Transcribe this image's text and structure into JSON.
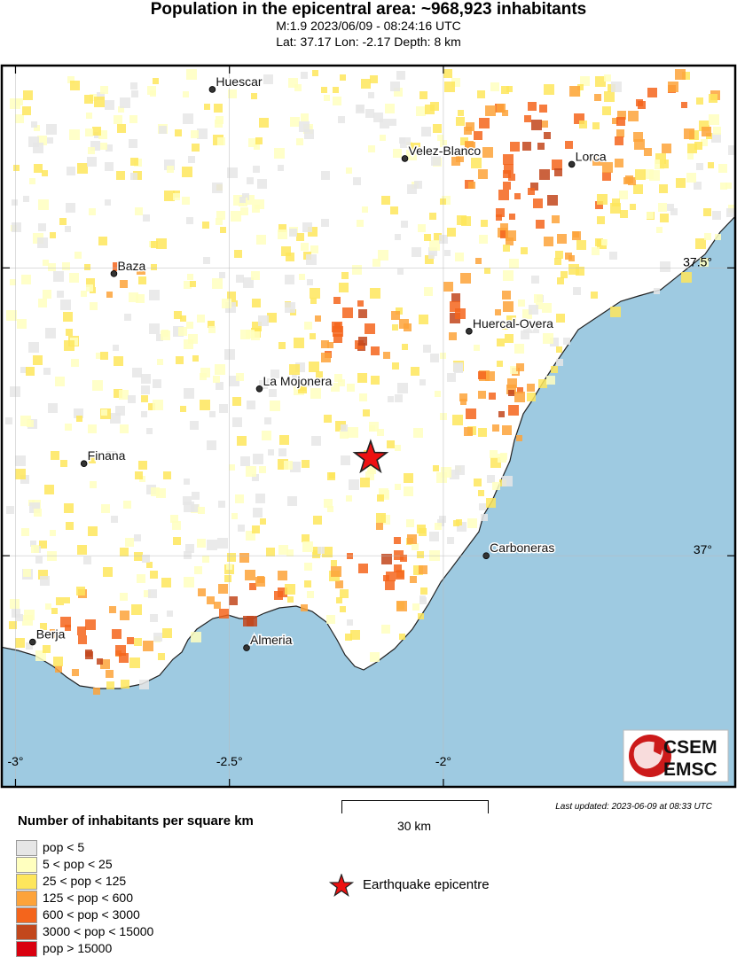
{
  "header": {
    "title": "Population in the epicentral area: ~968,923 inhabitants",
    "line1": "M:1.9 2023/06/09 - 08:24:16 UTC",
    "line2": "Lat: 37.17 Lon: -2.17 Depth: 8 km"
  },
  "map": {
    "bounds": {
      "lon_min": -3.03,
      "lon_max": -1.32,
      "lat_min": 36.6,
      "lat_max": 37.85
    },
    "colors": {
      "sea": "#9ecae1",
      "land": "#ffffff",
      "coast": "#222222",
      "epicentre": "#ee1111"
    },
    "cities": [
      {
        "name": "Huescar",
        "lon": -2.54,
        "lat": 37.81
      },
      {
        "name": "Velez-Blanco",
        "lon": -2.09,
        "lat": 37.69
      },
      {
        "name": "Lorca",
        "lon": -1.7,
        "lat": 37.68
      },
      {
        "name": "Baza",
        "lon": -2.77,
        "lat": 37.49
      },
      {
        "name": "Huercal-Overa",
        "lon": -1.94,
        "lat": 37.39
      },
      {
        "name": "La Mojonera",
        "lon": -2.43,
        "lat": 37.29
      },
      {
        "name": "Finana",
        "lon": -2.84,
        "lat": 37.16
      },
      {
        "name": "Carboneras",
        "lon": -1.9,
        "lat": 37.0
      },
      {
        "name": "Berja",
        "lon": -2.96,
        "lat": 36.85
      },
      {
        "name": "Almeria",
        "lon": -2.46,
        "lat": 36.84
      }
    ],
    "epicentre": {
      "lon": -2.17,
      "lat": 37.17
    },
    "lon_ticks": [
      {
        "label": "-3°",
        "value": -3.0
      },
      {
        "label": "-2.5°",
        "value": -2.5
      },
      {
        "label": "-2°",
        "value": -2.0
      }
    ],
    "lat_ticks": [
      {
        "label": "37.5°",
        "value": 37.5
      },
      {
        "label": "37°",
        "value": 37.0
      }
    ],
    "logo": {
      "line1": "CSEM",
      "line2": "EMSC"
    }
  },
  "legend": {
    "title": "Number of inhabitants per square km",
    "items": [
      {
        "label": "pop < 5",
        "color": "#e6e6e6"
      },
      {
        "label": "5 < pop < 25",
        "color": "#ffffbf"
      },
      {
        "label": "25 < pop < 125",
        "color": "#fee65c"
      },
      {
        "label": "125 < pop < 600",
        "color": "#fda33a"
      },
      {
        "label": "600 < pop < 3000",
        "color": "#f4651c"
      },
      {
        "label": "3000 < pop < 15000",
        "color": "#c2471c"
      },
      {
        "label": "pop > 15000",
        "color": "#d9000f"
      }
    ],
    "epicentre_label": "Earthquake epicentre"
  },
  "scale_label": "30 km",
  "updated": "Last updated: 2023-06-09 at 08:33 UTC"
}
